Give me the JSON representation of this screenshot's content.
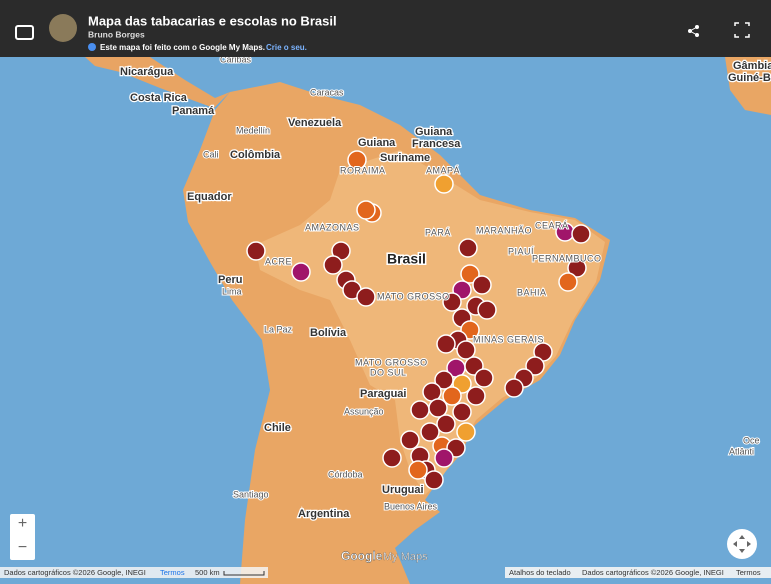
{
  "header": {
    "title": "Mapa das tabacarias e escolas no Brasil",
    "author": "Bruno Borges",
    "info": "Este mapa foi feito com o Google My Maps.",
    "info_link": "Crie o seu."
  },
  "map_labels": {
    "nicaragua": "Nicarágua",
    "costa_rica": "Costa Rica",
    "panama": "Panamá",
    "caracas": "Caracas",
    "medellin": "Medellín",
    "venezuela": "Venezuela",
    "guiana": "Guiana",
    "guiana_francesa_1": "Guiana",
    "guiana_francesa_2": "Francesa",
    "suriname": "Suriname",
    "colombia": "Colômbia",
    "cali": "Cali",
    "equador": "Equador",
    "roraima": "RORAIMA",
    "amapa": "AMAPÁ",
    "amazonas": "AMAZONAS",
    "para": "PARÁ",
    "maranhao": "MARANHÃO",
    "ceara": "CEARÁ",
    "piaui": "PIAUÍ",
    "pernambuco": "PERNAMBUCO",
    "acre": "ACRE",
    "brasil": "Brasil",
    "bahia": "BAHIA",
    "mato_grosso": "MATO GROSSO",
    "peru": "Peru",
    "lima": "Lima",
    "la_paz": "La Paz",
    "bolivia": "Bolívia",
    "minas_gerais": "MINAS GERAIS",
    "mato_grosso_do_sul_1": "MATO GROSSO",
    "mato_grosso_do_sul_2": "DO SUL",
    "paraguai": "Paraguai",
    "assuncao": "Assunção",
    "chile": "Chile",
    "santiago": "Santiago",
    "cordoba": "Córdoba",
    "argentina": "Argentina",
    "uruguai": "Uruguai",
    "buenos_aires": "Buenos Aires",
    "oceano_1": "Oce",
    "oceano_2": "Atlânti",
    "gambia": "Gâmbia",
    "guine_bissau": "Guiné-B",
    "caribas": "Caribas"
  },
  "controls": {
    "zoom_in": "+",
    "zoom_out": "−"
  },
  "logo": {
    "google": "Google",
    "my_maps": "My Maps"
  },
  "footer": {
    "left_data": "Dados cartográficos ©2026 Google, INEGI",
    "left_terms": "Termos",
    "scale": "500 km",
    "shortcuts": "Atalhos do teclado",
    "right_data": "Dados cartográficos ©2026 Google, INEGI",
    "right_terms": "Termos"
  }
}
